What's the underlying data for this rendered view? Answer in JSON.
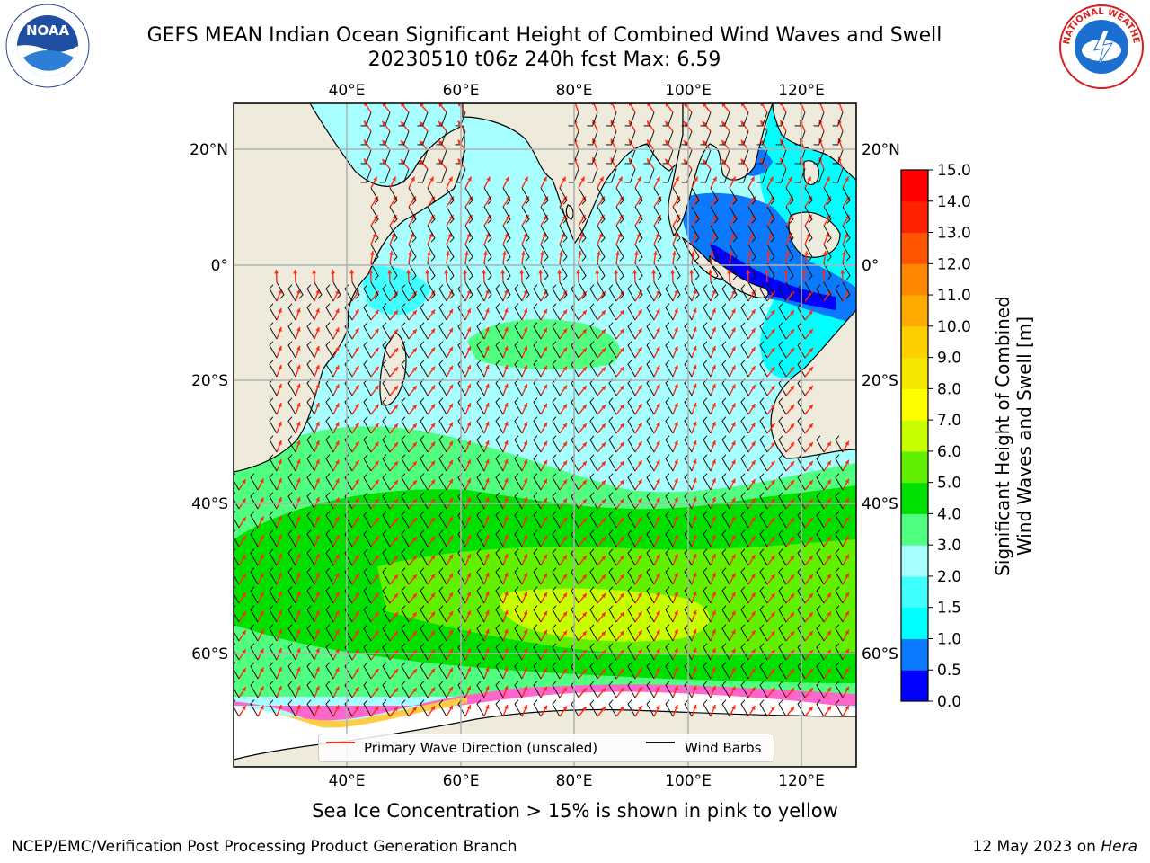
{
  "header": {
    "title_line1": "GEFS MEAN Indian Ocean Significant Height of Combined Wind Waves and Swell",
    "title_line2": "20230510 t06z 240h fcst   Max: 6.59"
  },
  "map": {
    "top_lon_labels": [
      "40°E",
      "60°E",
      "80°E",
      "100°E",
      "120°E"
    ],
    "bottom_lon_labels": [
      "40°E",
      "60°E",
      "80°E",
      "100°E",
      "120°E"
    ],
    "left_lat_labels": [
      "20°N",
      "0°",
      "20°S",
      "40°S",
      "60°S"
    ],
    "right_lat_labels": [
      "20°N",
      "0°",
      "20°S",
      "40°S",
      "60°S"
    ],
    "colors": {
      "land": "#efebdc",
      "ice": "#ffffff",
      "wave_direction": "#ff2a14",
      "wind_barb": "#111111",
      "gridline": "#b0b0b0"
    }
  },
  "legend": {
    "primary_wave_label": "Primary Wave Direction (unscaled)",
    "wind_barbs_label": "Wind Barbs"
  },
  "colorbar": {
    "label_line1": "Significant Height of Combined",
    "label_line2": "Wind Waves and Swell [m]",
    "ticks": [
      "0.0",
      "0.5",
      "1.0",
      "1.5",
      "2.0",
      "3.0",
      "4.0",
      "5.0",
      "6.0",
      "7.0",
      "8.0",
      "9.0",
      "10.0",
      "11.0",
      "12.0",
      "13.0",
      "14.0",
      "15.0"
    ],
    "colors": [
      "#0000ff",
      "#0a78ff",
      "#00ffff",
      "#40ffff",
      "#a8ffff",
      "#50ff80",
      "#00e000",
      "#60f000",
      "#c8ff00",
      "#ffff00",
      "#f5e600",
      "#ffd000",
      "#ffaa00",
      "#ff8800",
      "#ff5500",
      "#ff2200",
      "#ff0000"
    ]
  },
  "caption": "Sea Ice Concentration > 15% is shown in pink to yellow",
  "footer": {
    "left": "NCEP/EMC/Verification Post Processing Product Generation Branch",
    "right_date": "12 May 2023 on ",
    "right_host": "Hera"
  },
  "logos": {
    "noaa_text": "NOAA",
    "nws_text": "NATIONAL WEATHER SERVICE"
  }
}
